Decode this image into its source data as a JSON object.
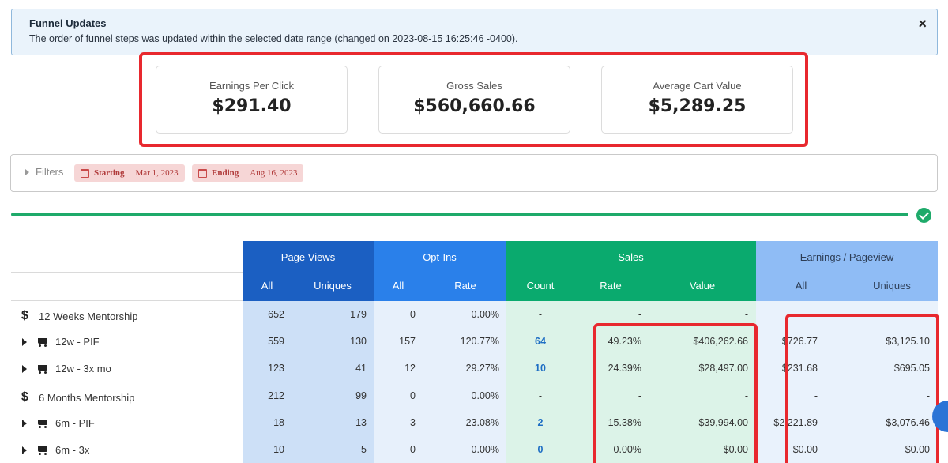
{
  "notice": {
    "title": "Funnel Updates",
    "text": "The order of funnel steps was updated within the selected date range (changed on 2023-08-15 16:25:46 -0400).",
    "close": "×"
  },
  "stats": [
    {
      "label": "Earnings Per Click",
      "value": "$291.40"
    },
    {
      "label": "Gross Sales",
      "value": "$560,660.66"
    },
    {
      "label": "Average Cart Value",
      "value": "$5,289.25"
    }
  ],
  "filters": {
    "label": "Filters",
    "start_label": "Starting",
    "start_date": "Mar 1, 2023",
    "end_label": "Ending",
    "end_date": "Aug 16, 2023"
  },
  "progress": {
    "value": 1.0
  },
  "table": {
    "groups": [
      {
        "label": "Page Views",
        "color": "#1b5fc2"
      },
      {
        "label": "Opt-Ins",
        "color": "#2a80ea"
      },
      {
        "label": "Sales",
        "color": "#0aaa6e"
      },
      {
        "label": "Earnings / Pageview",
        "color": "#8fbcf5"
      }
    ],
    "subheaders": [
      "All",
      "Uniques",
      "All",
      "Rate",
      "Count",
      "Rate",
      "Value",
      "All",
      "Uniques"
    ],
    "rows": [
      {
        "type": "group",
        "icon": "dollar-icon",
        "label": "12 Weeks Mentorship",
        "cells": [
          "652",
          "179",
          "0",
          "0.00%",
          "-",
          "-",
          "-",
          "",
          ""
        ]
      },
      {
        "type": "item",
        "icon": "cart-icon",
        "label": "12w - PIF",
        "cells": [
          "559",
          "130",
          "157",
          "120.77%",
          "64",
          "49.23%",
          "$406,262.66",
          "$726.77",
          "$3,125.10"
        ]
      },
      {
        "type": "item",
        "icon": "cart-icon",
        "label": "12w - 3x mo",
        "cells": [
          "123",
          "41",
          "12",
          "29.27%",
          "10",
          "24.39%",
          "$28,497.00",
          "$231.68",
          "$695.05"
        ]
      },
      {
        "type": "group",
        "icon": "dollar-icon",
        "label": "6 Months Mentorship",
        "cells": [
          "212",
          "99",
          "0",
          "0.00%",
          "-",
          "-",
          "-",
          "-",
          "-"
        ]
      },
      {
        "type": "item",
        "icon": "cart-icon",
        "label": "6m - PIF",
        "cells": [
          "18",
          "13",
          "3",
          "23.08%",
          "2",
          "15.38%",
          "$39,994.00",
          "$2,221.89",
          "$3,076.46"
        ]
      },
      {
        "type": "item",
        "icon": "cart-icon",
        "label": "6m - 3x",
        "cells": [
          "10",
          "5",
          "0",
          "0.00%",
          "0",
          "0.00%",
          "$0.00",
          "$0.00",
          "$0.00"
        ]
      }
    ]
  }
}
